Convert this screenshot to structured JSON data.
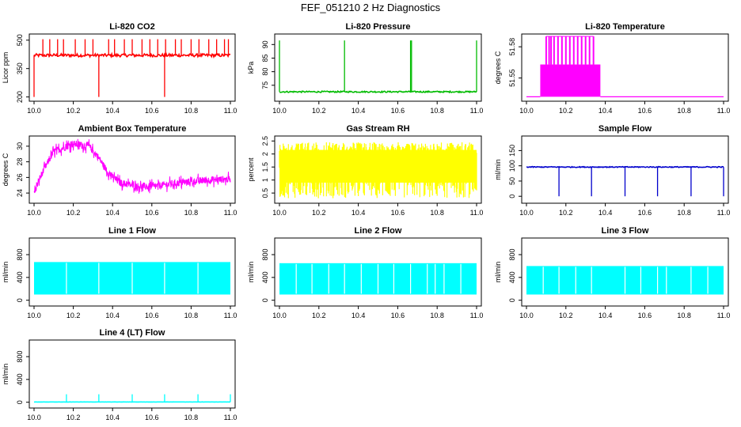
{
  "figure": {
    "title": "FEF_051210  2 Hz Diagnostics"
  },
  "chart_data": [
    {
      "type": "line",
      "title": "Li-820 CO2",
      "xlabel": "",
      "ylabel": "Licor ppm",
      "color": "#ff0000",
      "x_range": [
        10.0,
        11.0
      ],
      "ylim": [
        190,
        520
      ],
      "xticks": [
        10.0,
        10.2,
        10.4,
        10.6,
        10.8,
        11.0
      ],
      "xtick_labels": [
        "10.0",
        "10.2",
        "10.4",
        "10.6",
        "10.8",
        "11.0"
      ],
      "yticks": [
        200,
        350,
        500
      ],
      "ytick_labels": [
        "200",
        "350",
        "500"
      ],
      "signal": {
        "kind": "noise",
        "baseline": 420,
        "noise": 8,
        "spikes_up": [
          0.045,
          0.08,
          0.12,
          0.15,
          0.21,
          0.26,
          0.3,
          0.38,
          0.41,
          0.46,
          0.5,
          0.55,
          0.59,
          0.63,
          0.67,
          0.72,
          0.75,
          0.8,
          0.84,
          0.89,
          0.93,
          0.97,
          0.99
        ],
        "spike_up_to": 505,
        "spikes_down": [
          0.0,
          0.33,
          0.665
        ],
        "spike_down_to": 200
      }
    },
    {
      "type": "line",
      "title": "Li-820 Pressure",
      "xlabel": "",
      "ylabel": "kPa",
      "color": "#00bb00",
      "x_range": [
        10.0,
        11.0
      ],
      "ylim": [
        70,
        93
      ],
      "xticks": [
        10.0,
        10.2,
        10.4,
        10.6,
        10.8,
        11.0
      ],
      "xtick_labels": [
        "10.0",
        "10.2",
        "10.4",
        "10.6",
        "10.8",
        "11.0"
      ],
      "yticks": [
        75,
        80,
        85,
        90
      ],
      "ytick_labels": [
        "75",
        "80",
        "85",
        "90"
      ],
      "signal": {
        "kind": "noise",
        "baseline": 72.6,
        "noise": 0.25,
        "spikes_up": [
          0.0,
          0.33,
          0.665,
          0.67,
          1.0
        ],
        "spike_up_to": 91.5,
        "spikes_down": [],
        "spike_down_to": 72
      }
    },
    {
      "type": "line",
      "title": "Li-820 Temperature",
      "xlabel": "",
      "ylabel": "degrees C",
      "color": "#ff00ff",
      "x_range": [
        10.0,
        11.0
      ],
      "ylim": [
        51.53,
        51.59
      ],
      "xticks": [
        10.0,
        10.2,
        10.4,
        10.6,
        10.8,
        11.0
      ],
      "xtick_labels": [
        "10.0",
        "10.2",
        "10.4",
        "10.6",
        "10.8",
        "11.0"
      ],
      "yticks": [
        51.55,
        51.58
      ],
      "ytick_labels": [
        "51.55",
        "51.58"
      ],
      "signal": {
        "kind": "step",
        "low": 51.532,
        "high": 51.563,
        "top": 51.59,
        "segments": [
          [
            0.0,
            0.07,
            "low"
          ],
          [
            0.07,
            0.375,
            "high"
          ],
          [
            0.375,
            1.0,
            "low"
          ]
        ],
        "spikes_top": [
          0.1,
          0.115,
          0.125,
          0.14,
          0.16,
          0.18,
          0.2,
          0.22,
          0.24,
          0.26,
          0.28,
          0.3,
          0.32,
          0.34
        ]
      }
    },
    {
      "type": "line",
      "title": "Ambient Box Temperature",
      "xlabel": "",
      "ylabel": "degrees C",
      "color": "#ff00ff",
      "x_range": [
        10.0,
        11.0
      ],
      "ylim": [
        23,
        31
      ],
      "xticks": [
        10.0,
        10.2,
        10.4,
        10.6,
        10.8,
        11.0
      ],
      "xtick_labels": [
        "10.0",
        "10.2",
        "10.4",
        "10.6",
        "10.8",
        "11.0"
      ],
      "yticks": [
        24,
        26,
        28,
        30
      ],
      "ytick_labels": [
        "24",
        "26",
        "28",
        "30"
      ],
      "signal": {
        "kind": "curve",
        "points": [
          [
            0.0,
            24.0
          ],
          [
            0.04,
            26.5
          ],
          [
            0.1,
            29.3
          ],
          [
            0.2,
            30.3
          ],
          [
            0.28,
            30.0
          ],
          [
            0.33,
            28.5
          ],
          [
            0.38,
            26.5
          ],
          [
            0.44,
            25.3
          ],
          [
            0.52,
            24.9
          ],
          [
            0.6,
            24.8
          ],
          [
            0.7,
            25.2
          ],
          [
            0.85,
            25.6
          ],
          [
            1.0,
            25.8
          ]
        ],
        "noise": 0.45
      }
    },
    {
      "type": "line",
      "title": "Gas Stream RH",
      "xlabel": "",
      "ylabel": "percent",
      "color": "#ffff00",
      "x_range": [
        10.0,
        11.0
      ],
      "ylim": [
        0.2,
        2.6
      ],
      "xticks": [
        10.0,
        10.2,
        10.4,
        10.6,
        10.8,
        11.0
      ],
      "xtick_labels": [
        "10.0",
        "10.2",
        "10.4",
        "10.6",
        "10.8",
        "11.0"
      ],
      "yticks": [
        0.5,
        1.0,
        1.5,
        2.0,
        2.5
      ],
      "ytick_labels": [
        "0.5",
        "1",
        "1.5",
        "2",
        "2.5"
      ],
      "signal": {
        "kind": "band",
        "low": 0.3,
        "high": 2.45,
        "lines": 420
      }
    },
    {
      "type": "line",
      "title": "Sample Flow",
      "xlabel": "",
      "ylabel": "ml/min",
      "color": "#0000cc",
      "x_range": [
        10.0,
        11.0
      ],
      "ylim": [
        -15,
        190
      ],
      "xticks": [
        10.0,
        10.2,
        10.4,
        10.6,
        10.8,
        11.0
      ],
      "xtick_labels": [
        "10.0",
        "10.2",
        "10.4",
        "10.6",
        "10.8",
        "11.0"
      ],
      "yticks": [
        0,
        50,
        100,
        150
      ],
      "ytick_labels": [
        "0",
        "50",
        "100",
        "150"
      ],
      "signal": {
        "kind": "noise",
        "baseline": 96,
        "noise": 1.5,
        "spikes_up": [],
        "spike_up_to": 96,
        "spikes_down": [
          0.165,
          0.33,
          0.5,
          0.665,
          0.835,
          1.0
        ],
        "spike_down_to": 0
      }
    },
    {
      "type": "line",
      "title": "Line 1 Flow",
      "xlabel": "",
      "ylabel": "ml/min",
      "color": "#00ffff",
      "x_range": [
        10.0,
        11.0
      ],
      "ylim": [
        -60,
        1050
      ],
      "xticks": [
        10.0,
        10.2,
        10.4,
        10.6,
        10.8,
        11.0
      ],
      "xtick_labels": [
        "10.0",
        "10.2",
        "10.4",
        "10.6",
        "10.8",
        "11.0"
      ],
      "yticks": [
        0,
        400,
        800
      ],
      "ytick_labels": [
        "0",
        "400",
        "800"
      ],
      "signal": {
        "kind": "band",
        "low": 100,
        "high": 670,
        "lines": 0,
        "gaps": [
          0.165,
          0.33,
          0.5,
          0.665,
          0.835
        ]
      }
    },
    {
      "type": "line",
      "title": "Line 2 Flow",
      "xlabel": "",
      "ylabel": "ml/min",
      "color": "#00ffff",
      "x_range": [
        10.0,
        11.0
      ],
      "ylim": [
        -60,
        1050
      ],
      "xticks": [
        10.0,
        10.2,
        10.4,
        10.6,
        10.8,
        11.0
      ],
      "xtick_labels": [
        "10.0",
        "10.2",
        "10.4",
        "10.6",
        "10.8",
        "11.0"
      ],
      "yticks": [
        0,
        400,
        800
      ],
      "ytick_labels": [
        "0",
        "400",
        "800"
      ],
      "signal": {
        "kind": "band",
        "low": 100,
        "high": 650,
        "lines": 0,
        "gaps": [
          0.085,
          0.165,
          0.25,
          0.33,
          0.415,
          0.5,
          0.58,
          0.665,
          0.75,
          0.79,
          0.835,
          0.92
        ]
      }
    },
    {
      "type": "line",
      "title": "Line 3 Flow",
      "xlabel": "",
      "ylabel": "ml/min",
      "color": "#00ffff",
      "x_range": [
        10.0,
        11.0
      ],
      "ylim": [
        -60,
        1050
      ],
      "xticks": [
        10.0,
        10.2,
        10.4,
        10.6,
        10.8,
        11.0
      ],
      "xtick_labels": [
        "10.0",
        "10.2",
        "10.4",
        "10.6",
        "10.8",
        "11.0"
      ],
      "yticks": [
        0,
        400,
        800
      ],
      "ytick_labels": [
        "0",
        "400",
        "800"
      ],
      "signal": {
        "kind": "band",
        "low": 100,
        "high": 600,
        "lines": 0,
        "gaps": [
          0.085,
          0.165,
          0.25,
          0.33,
          0.5,
          0.58,
          0.665,
          0.71,
          0.835,
          0.92
        ]
      }
    },
    {
      "type": "line",
      "title": "Line 4 (LT) Flow",
      "xlabel": "",
      "ylabel": "ml/min",
      "color": "#00ffff",
      "x_range": [
        10.0,
        11.0
      ],
      "ylim": [
        -60,
        1050
      ],
      "xticks": [
        10.0,
        10.2,
        10.4,
        10.6,
        10.8,
        11.0
      ],
      "xtick_labels": [
        "10.0",
        "10.2",
        "10.4",
        "10.6",
        "10.8",
        "11.0"
      ],
      "yticks": [
        0,
        400,
        800
      ],
      "ytick_labels": [
        "0",
        "400",
        "800"
      ],
      "signal": {
        "kind": "noise",
        "baseline": 5,
        "noise": 1,
        "spikes_up": [
          0.165,
          0.33,
          0.5,
          0.665,
          0.835,
          1.0
        ],
        "spike_up_to": 140,
        "spikes_down": [],
        "spike_down_to": 0
      }
    }
  ]
}
